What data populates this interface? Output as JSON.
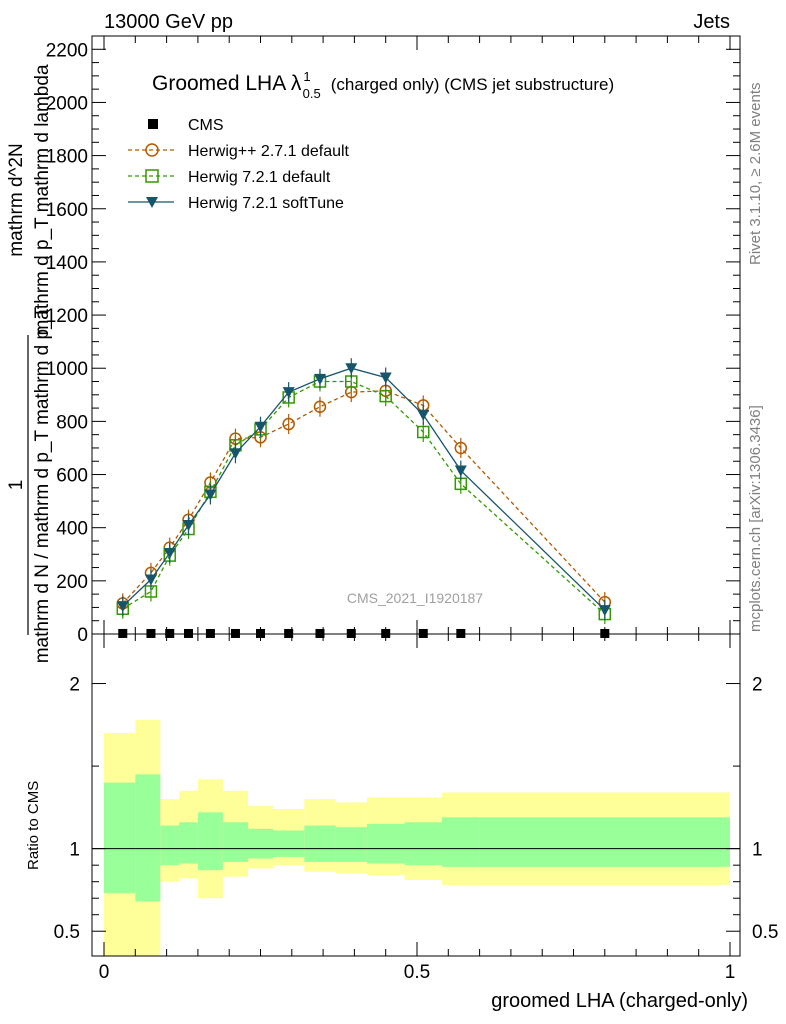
{
  "header": {
    "left": "13000 GeV pp",
    "right": "Jets"
  },
  "side_text": {
    "rivet": "Rivet 3.1.10, ≥ 2.6M events",
    "mcplots": "mcplots.cern.ch [arXiv:1306.3436]"
  },
  "chart_data": [
    {
      "type": "line",
      "title": "Groomed LHA λ",
      "title_sup": "1",
      "title_sub": "0.5",
      "title_suffix": "(charged only) (CMS jet substructure)",
      "watermark": "CMS_2021_I1920187",
      "ylabel": {
        "numerator_1": "1",
        "denominator": "mathrm d N / mathrm d p_T mathrm d p_T",
        "numerator_2": "mathrm d^2N",
        "denominator_2": "mathrm d p_T mathrm d lambda"
      },
      "xlim": [
        -0.02,
        1.0
      ],
      "ylim": [
        0,
        2250
      ],
      "yticks": [
        0,
        200,
        400,
        600,
        800,
        1000,
        1200,
        1400,
        1600,
        1800,
        2000,
        2200
      ],
      "legend_placement": "top-left",
      "legend": {
        "CMS": "CMS",
        "herwig_pp": "Herwig++ 2.7.1 default",
        "herwig_def": "Herwig 7.2.1 default",
        "herwig_soft": "Herwig 7.2.1 softTune"
      },
      "x": [
        0.03,
        0.075,
        0.105,
        0.135,
        0.17,
        0.21,
        0.25,
        0.295,
        0.345,
        0.395,
        0.45,
        0.51,
        0.57,
        0.8
      ],
      "series": [
        {
          "key": "cms",
          "name": "CMS",
          "color": "#000000",
          "marker": "square",
          "values": [
            2,
            2,
            2,
            2,
            2,
            2,
            2,
            2,
            2,
            2,
            2,
            2,
            2,
            2
          ]
        },
        {
          "key": "herwig_pp",
          "name": "Herwig++ 2.7.1 default",
          "color": "#b35900",
          "marker": "circle",
          "dash": true,
          "values": [
            115,
            230,
            325,
            430,
            570,
            735,
            740,
            790,
            855,
            910,
            915,
            860,
            700,
            120
          ]
        },
        {
          "key": "herwig_def",
          "name": "Herwig 7.2.1 default",
          "color": "#339900",
          "marker": "open-square",
          "dash": true,
          "values": [
            95,
            160,
            295,
            395,
            535,
            710,
            770,
            890,
            950,
            950,
            895,
            760,
            565,
            75
          ]
        },
        {
          "key": "herwig_soft",
          "name": "Herwig 7.2.1 softTune",
          "color": "#17556b",
          "marker": "down-triangle",
          "dash": false,
          "values": [
            105,
            205,
            305,
            410,
            525,
            680,
            780,
            910,
            960,
            1000,
            965,
            825,
            615,
            90
          ]
        }
      ]
    },
    {
      "type": "area",
      "ylabel": "Ratio to CMS",
      "xlabel": "groomed LHA (charged-only)",
      "xlim": [
        -0.02,
        1.0
      ],
      "xticks": [
        0,
        0.5,
        1
      ],
      "xtick_labels": [
        "0",
        "0.5",
        "1"
      ],
      "ylim": [
        0.35,
        2.3
      ],
      "ytick_labels": [
        "0.5",
        "1",
        "2"
      ],
      "ytick_values": [
        0.5,
        1,
        2
      ],
      "bins": [
        0,
        0.05,
        0.09,
        0.12,
        0.15,
        0.19,
        0.23,
        0.27,
        0.32,
        0.37,
        0.42,
        0.48,
        0.54,
        0.6,
        1.0
      ],
      "band_outer_low": [
        0.35,
        0.35,
        0.8,
        0.82,
        0.7,
        0.83,
        0.88,
        0.9,
        0.86,
        0.85,
        0.84,
        0.81,
        0.78,
        0.78
      ],
      "band_outer_high": [
        1.7,
        1.78,
        1.3,
        1.35,
        1.42,
        1.35,
        1.26,
        1.24,
        1.3,
        1.28,
        1.31,
        1.31,
        1.34,
        1.34
      ],
      "band_inner_low": [
        0.73,
        0.68,
        0.9,
        0.91,
        0.87,
        0.92,
        0.94,
        0.95,
        0.92,
        0.92,
        0.91,
        0.9,
        0.89,
        0.89
      ],
      "band_inner_high": [
        1.4,
        1.45,
        1.14,
        1.16,
        1.22,
        1.16,
        1.12,
        1.11,
        1.14,
        1.13,
        1.15,
        1.16,
        1.19,
        1.19
      ],
      "outer_color": "#ffff99",
      "inner_color": "#99ff99"
    }
  ]
}
